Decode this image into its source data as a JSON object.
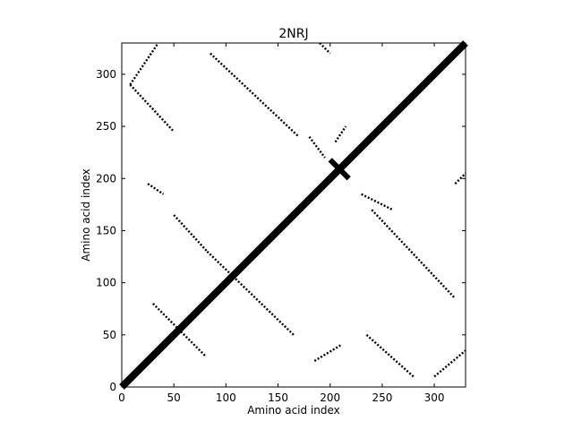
{
  "chart_data": {
    "type": "scatter",
    "title": "2NRJ",
    "xlabel": "Amino acid index",
    "ylabel": "Amino acid index",
    "xlim": [
      0,
      330
    ],
    "ylim": [
      0,
      330
    ],
    "x_ticks": [
      0,
      50,
      100,
      150,
      200,
      250,
      300
    ],
    "y_ticks": [
      0,
      50,
      100,
      150,
      200,
      250,
      300
    ],
    "grid": false,
    "marker_color": "#000000",
    "segments": [
      {
        "name": "main-diagonal",
        "x": [
          0,
          330
        ],
        "y": [
          0,
          330
        ],
        "width": 2
      },
      {
        "name": "cross-arm",
        "x": [
          200,
          218
        ],
        "y": [
          218,
          200
        ],
        "width": 1.5
      },
      {
        "name": "band-a",
        "x": [
          50,
          82
        ],
        "y": [
          165,
          130
        ],
        "width": 0.6
      },
      {
        "name": "band-b",
        "x": [
          82,
          165
        ],
        "y": [
          130,
          50
        ],
        "width": 0.6
      },
      {
        "name": "band-c",
        "x": [
          165,
          50
        ],
        "y": [
          50,
          165
        ],
        "width": 0
      },
      {
        "name": "band-d",
        "x": [
          240,
          285
        ],
        "y": [
          245,
          285
        ],
        "width": 0
      },
      {
        "name": "upper-left-arc",
        "x": [
          8,
          35
        ],
        "y": [
          290,
          330
        ],
        "width": 0.6
      },
      {
        "name": "upper-left-tail",
        "x": [
          8,
          50
        ],
        "y": [
          290,
          245
        ],
        "width": 0.6
      },
      {
        "name": "upper-mid-band",
        "x": [
          85,
          170
        ],
        "y": [
          320,
          240
        ],
        "width": 0.6
      },
      {
        "name": "mid-left-cluster",
        "x": [
          25,
          40
        ],
        "y": [
          195,
          185
        ],
        "width": 0.6
      },
      {
        "name": "right-upper-band",
        "x": [
          230,
          260
        ],
        "y": [
          185,
          170
        ],
        "width": 0.6
      },
      {
        "name": "right-lower-band",
        "x": [
          240,
          320
        ],
        "y": [
          170,
          85
        ],
        "width": 0.6
      },
      {
        "name": "lower-left-band",
        "x": [
          30,
          80
        ],
        "y": [
          80,
          30
        ],
        "width": 0.6
      },
      {
        "name": "lower-right-band",
        "x": [
          235,
          280
        ],
        "y": [
          50,
          10
        ],
        "width": 0.6
      },
      {
        "name": "lower-right-arc",
        "x": [
          300,
          330
        ],
        "y": [
          10,
          35
        ],
        "width": 0.6
      },
      {
        "name": "upper-right-dots",
        "x": [
          190,
          200
        ],
        "y": [
          330,
          320
        ],
        "width": 0.6
      },
      {
        "name": "right-edge-dots",
        "x": [
          320,
          330
        ],
        "y": [
          195,
          205
        ],
        "width": 0.6
      },
      {
        "name": "cross-left-dots",
        "x": [
          180,
          195
        ],
        "y": [
          240,
          220
        ],
        "width": 0.6
      },
      {
        "name": "cross-right-dots",
        "x": [
          205,
          215
        ],
        "y": [
          235,
          250
        ],
        "width": 0.6
      },
      {
        "name": "bottom-mid-dots",
        "x": [
          185,
          210
        ],
        "y": [
          25,
          40
        ],
        "width": 0.6
      }
    ]
  }
}
